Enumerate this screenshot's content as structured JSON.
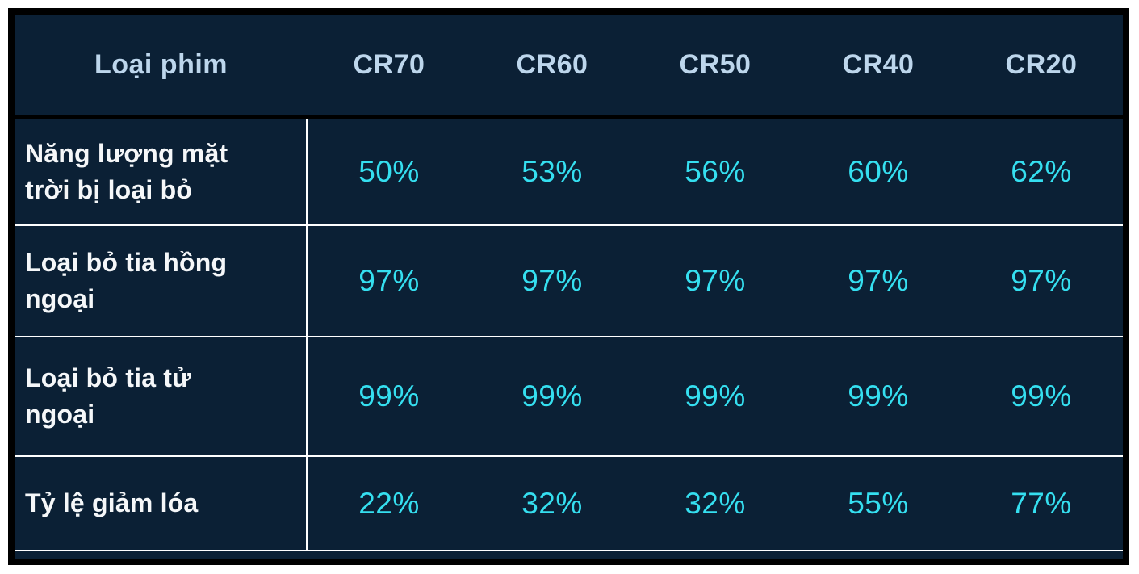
{
  "colors": {
    "page_background": "#ffffff",
    "table_background": "#0b2035",
    "frame_border": "#000000",
    "grid_lines": "#ffffff",
    "header_text": "#bdd6ec",
    "row_label_text": "#f5f7f9",
    "value_text": "#35dff0"
  },
  "chart_data": {
    "type": "table",
    "columns": [
      "Loại phim",
      "CR70",
      "CR60",
      "CR50",
      "CR40",
      "CR20"
    ],
    "rows": [
      {
        "label": "Năng lượng mặt trời bị loại bỏ",
        "label_display": "Năng lượng mặt\ntrời bị loại bỏ",
        "values": [
          "50%",
          "53%",
          "56%",
          "60%",
          "62%"
        ]
      },
      {
        "label": "Loại bỏ tia hồng ngoại",
        "label_display": "Loại bỏ tia hồng\nngoại",
        "values": [
          "97%",
          "97%",
          "97%",
          "97%",
          "97%"
        ]
      },
      {
        "label": "Loại bỏ tia tử ngoại",
        "label_display": "Loại bỏ tia tử\nngoại",
        "values": [
          "99%",
          "99%",
          "99%",
          "99%",
          "99%"
        ]
      },
      {
        "label": "Tỷ lệ giảm lóa",
        "label_display": "Tỷ lệ giảm lóa",
        "values": [
          "22%",
          "32%",
          "32%",
          "55%",
          "77%"
        ]
      }
    ]
  }
}
